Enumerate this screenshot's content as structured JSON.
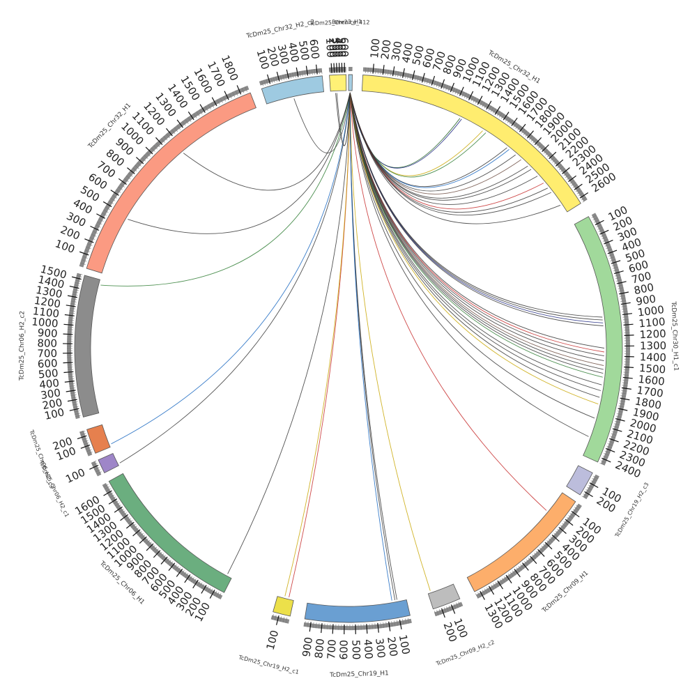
{
  "diagram": {
    "type": "circos",
    "segments": [
      {
        "name": "Berenice_412",
        "length": 20,
        "color": "#a6cee3",
        "ticks": []
      },
      {
        "name": "TcDm25_Chr32_H1",
        "length": 2650,
        "color": "#ffed6f",
        "ticks": [
          100,
          200,
          300,
          400,
          500,
          600,
          700,
          800,
          900,
          1000,
          1100,
          1200,
          1300,
          1400,
          1500,
          1600,
          1700,
          1800,
          1900,
          2000,
          2100,
          2200,
          2300,
          2400,
          2500,
          2600
        ]
      },
      {
        "name": "TcDm25_Chr30_H1_c1",
        "length": 2450,
        "color": "#a1d99b",
        "ticks": [
          100,
          200,
          300,
          400,
          500,
          600,
          700,
          800,
          900,
          1000,
          1100,
          1200,
          1300,
          1400,
          1500,
          1600,
          1700,
          1800,
          1900,
          2000,
          2100,
          2200,
          2300,
          2400
        ]
      },
      {
        "name": "TcDm25_Chr19_H2_c3",
        "length": 250,
        "color": "#bcbddc",
        "ticks": [
          100,
          200
        ]
      },
      {
        "name": "TcDm25_Chr09_H1",
        "length": 1350,
        "color": "#fdae6b",
        "ticks": [
          100,
          200,
          300,
          400,
          500,
          600,
          700,
          800,
          900,
          1000,
          1100,
          1200,
          1300
        ]
      },
      {
        "name": "TcDm25_Chr09_H2_c2",
        "length": 280,
        "color": "#bdbdbd",
        "ticks": [
          100,
          200
        ]
      },
      {
        "name": "TcDm25_Chr19_H1",
        "length": 960,
        "color": "#6a9fd2",
        "ticks": [
          100,
          200,
          300,
          400,
          500,
          600,
          700,
          800,
          900
        ]
      },
      {
        "name": "TcDm25_Chr19_H2_c1",
        "length": 160,
        "color": "#ece04a",
        "ticks": [
          100
        ]
      },
      {
        "name": "TcDm25_Chr06_H1",
        "length": 1700,
        "color": "#6bae7f",
        "ticks": [
          100,
          200,
          300,
          400,
          500,
          600,
          700,
          800,
          900,
          1000,
          1100,
          1200,
          1300,
          1400,
          1500,
          1600
        ]
      },
      {
        "name": "TcDm25_Chr06_H2_c1",
        "length": 150,
        "color": "#9e86c8",
        "ticks": [
          100
        ]
      },
      {
        "name": "TcDm25_Chr06_H2_c3",
        "length": 260,
        "color": "#e6804e",
        "ticks": [
          100,
          200
        ]
      },
      {
        "name": "TcDm25_Chr06_H2_c2",
        "length": 1550,
        "color": "#8c8c8c",
        "ticks": [
          100,
          200,
          300,
          400,
          500,
          600,
          700,
          800,
          900,
          1000,
          1100,
          1200,
          1300,
          1400,
          1500
        ]
      },
      {
        "name": "TcDm25_Chr32_H1",
        "length": 1870,
        "color": "#fb9a82",
        "ticks": [
          100,
          200,
          300,
          400,
          500,
          600,
          700,
          800,
          900,
          1000,
          1100,
          1200,
          1300,
          1400,
          1500,
          1600,
          1700,
          1800
        ]
      },
      {
        "name": "TcDm25_Chr32_H2_c2",
        "length": 650,
        "color": "#9ecae1",
        "ticks": [
          100,
          200,
          300,
          400,
          500,
          600
        ]
      },
      {
        "name": "TcDm25_Chr23_H1",
        "length": 660,
        "color": "#fff176",
        "ticks": [
          100,
          200,
          300,
          400,
          500,
          600
        ]
      }
    ],
    "links": [
      {
        "t": 1,
        "pos": 1100,
        "color": "#1b5e20"
      },
      {
        "t": 1,
        "pos": 1120,
        "color": "#1a237e"
      },
      {
        "t": 1,
        "pos": 1380,
        "color": "#c8a600"
      },
      {
        "t": 1,
        "pos": 1420,
        "color": "#2e7d32"
      },
      {
        "t": 1,
        "pos": 1700,
        "color": "#333333"
      },
      {
        "t": 1,
        "pos": 1730,
        "color": "#1565c0"
      },
      {
        "t": 1,
        "pos": 1820,
        "color": "#333333"
      },
      {
        "t": 1,
        "pos": 1900,
        "color": "#6d4c41"
      },
      {
        "t": 1,
        "pos": 2000,
        "color": "#333333"
      },
      {
        "t": 1,
        "pos": 2050,
        "color": "#333333"
      },
      {
        "t": 1,
        "pos": 2150,
        "color": "#333333"
      },
      {
        "t": 1,
        "pos": 2250,
        "color": "#c62828"
      },
      {
        "t": 1,
        "pos": 2320,
        "color": "#333333"
      },
      {
        "t": 1,
        "pos": 2380,
        "color": "#333333"
      },
      {
        "t": 1,
        "pos": 2550,
        "color": "#333333"
      },
      {
        "t": 2,
        "pos": 1000,
        "color": "#333333"
      },
      {
        "t": 2,
        "pos": 1030,
        "color": "#333333"
      },
      {
        "t": 2,
        "pos": 1060,
        "color": "#1a237e"
      },
      {
        "t": 2,
        "pos": 1090,
        "color": "#333333"
      },
      {
        "t": 2,
        "pos": 1320,
        "color": "#333333"
      },
      {
        "t": 2,
        "pos": 1360,
        "color": "#c62828"
      },
      {
        "t": 2,
        "pos": 1400,
        "color": "#333333"
      },
      {
        "t": 2,
        "pos": 1450,
        "color": "#333333"
      },
      {
        "t": 2,
        "pos": 1500,
        "color": "#6d4c41"
      },
      {
        "t": 2,
        "pos": 1540,
        "color": "#333333"
      },
      {
        "t": 2,
        "pos": 1580,
        "color": "#333333"
      },
      {
        "t": 2,
        "pos": 1620,
        "color": "#2e7d32"
      },
      {
        "t": 2,
        "pos": 1700,
        "color": "#333333"
      },
      {
        "t": 2,
        "pos": 1760,
        "color": "#333333"
      },
      {
        "t": 2,
        "pos": 1830,
        "color": "#333333"
      },
      {
        "t": 2,
        "pos": 1900,
        "color": "#c8a600"
      },
      {
        "t": 2,
        "pos": 2050,
        "color": "#333333"
      },
      {
        "t": 2,
        "pos": 2250,
        "color": "#333333"
      },
      {
        "t": 4,
        "pos": 250,
        "color": "#c62828"
      },
      {
        "t": 5,
        "pos": 250,
        "color": "#c8a600"
      },
      {
        "t": 6,
        "pos": 90,
        "color": "#333333"
      },
      {
        "t": 6,
        "pos": 110,
        "color": "#333333"
      },
      {
        "t": 6,
        "pos": 140,
        "color": "#1565c0"
      },
      {
        "t": 7,
        "pos": 50,
        "color": "#c62828"
      },
      {
        "t": 7,
        "pos": 90,
        "color": "#c8a600"
      },
      {
        "t": 8,
        "pos": 60,
        "color": "#333333"
      },
      {
        "t": 9,
        "pos": 20,
        "color": "#333333"
      },
      {
        "t": 10,
        "pos": 30,
        "color": "#1565c0"
      },
      {
        "t": 11,
        "pos": 1490,
        "color": "#2e7d32"
      },
      {
        "t": 12,
        "pos": 480,
        "color": "#333333"
      },
      {
        "t": 12,
        "pos": 1180,
        "color": "#333333"
      },
      {
        "t": 13,
        "pos": 310,
        "color": "#333333"
      },
      {
        "t": 14,
        "pos": 210,
        "color": "#333333"
      },
      {
        "t": 14,
        "pos": 260,
        "color": "#333333"
      }
    ]
  }
}
